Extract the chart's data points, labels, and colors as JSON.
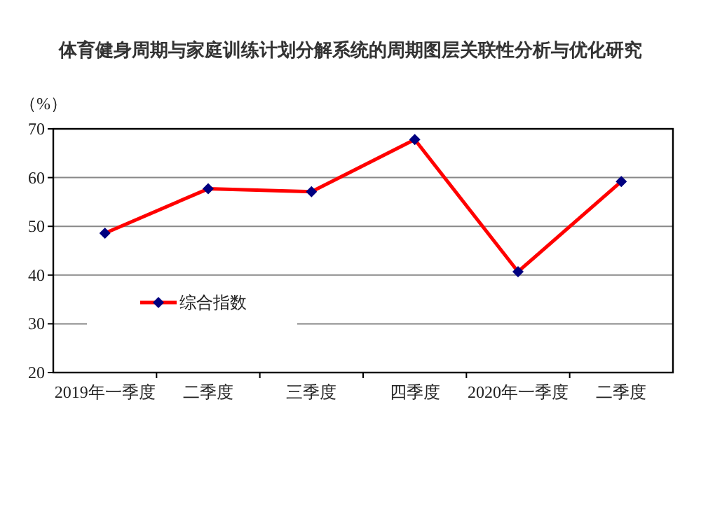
{
  "chart_data": {
    "type": "line",
    "title": "体育健身周期与家庭训练计划分解系统的周期图层关联性分析与优化研究",
    "ylabel": "（%）",
    "categories": [
      "2019年一季度",
      "二季度",
      "三季度",
      "四季度",
      "2020年一季度",
      "二季度"
    ],
    "series": [
      {
        "name": "综合指数",
        "color": "#ff0000",
        "values": [
          48.6,
          57.7,
          57.1,
          67.8,
          40.7,
          59.2
        ]
      }
    ],
    "ylim": [
      20,
      70
    ],
    "yticks": [
      20,
      30,
      40,
      50,
      60,
      70
    ],
    "grid": "y",
    "legend": "left",
    "marker": "diamond",
    "line_style": "solid"
  }
}
